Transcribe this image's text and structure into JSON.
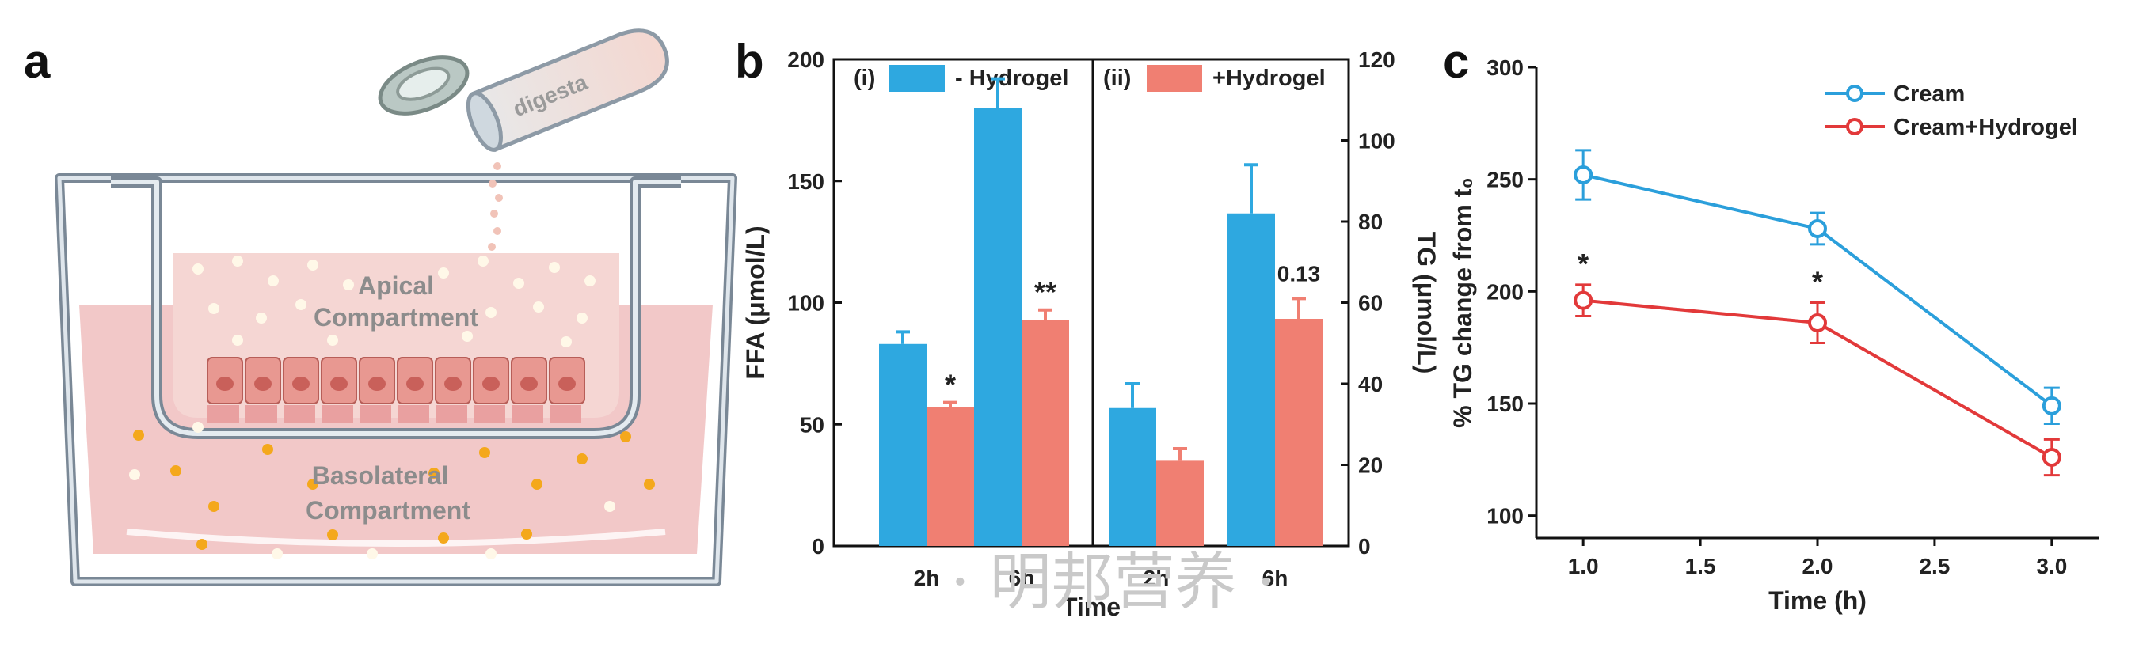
{
  "panels": {
    "a": "a",
    "b": "b",
    "c": "c"
  },
  "diagram": {
    "digesta_label": "digesta",
    "apical_line1": "Apical",
    "apical_line2": "Compartment",
    "basolateral_line1": "Basolateral",
    "basolateral_line2": "Compartment"
  },
  "colors": {
    "no_hydrogel": "#2ea8e0",
    "hydrogel": "#f07f72",
    "cream_line": "#2b9fdb",
    "cream_hydrogel_line": "#e2393a"
  },
  "watermark": "· 明邦营养 ·",
  "chart_data": [
    {
      "type": "bar",
      "panel": "b",
      "xlabel": "Time",
      "legend": [
        {
          "marker": "(i)",
          "name": "- Hydrogel",
          "color": "#2ea8e0"
        },
        {
          "marker": "(ii)",
          "name": "+Hydrogel",
          "color": "#f07f72"
        }
      ],
      "left_axis": {
        "label": "FFA (μmol/L)",
        "ylim": [
          0,
          200
        ],
        "ticks": [
          0,
          50,
          100,
          150,
          200
        ]
      },
      "right_axis": {
        "label": "TG (μmol/L)",
        "ylim": [
          0,
          120
        ],
        "ticks": [
          0,
          20,
          40,
          60,
          80,
          100,
          120
        ]
      },
      "sub_panels": [
        {
          "marker": "(i)",
          "axis": "left",
          "categories": [
            "2h",
            "6h"
          ],
          "series": [
            {
              "name": "- Hydrogel",
              "values": [
                83,
                180
              ],
              "errors": [
                5,
                12
              ]
            },
            {
              "name": "+Hydrogel",
              "values": [
                57,
                93
              ],
              "errors": [
                2,
                4
              ]
            }
          ],
          "annotations": [
            {
              "category": "2h",
              "series": "+Hydrogel",
              "text": "*"
            },
            {
              "category": "6h",
              "series": "+Hydrogel",
              "text": "**"
            }
          ]
        },
        {
          "marker": "(ii)",
          "axis": "right",
          "categories": [
            "2h",
            "6h"
          ],
          "series": [
            {
              "name": "- Hydrogel",
              "values": [
                34,
                82
              ],
              "errors": [
                6,
                12
              ]
            },
            {
              "name": "+Hydrogel",
              "values": [
                21,
                56
              ],
              "errors": [
                3,
                5
              ]
            }
          ],
          "annotations": [
            {
              "category": "6h",
              "series": "+Hydrogel",
              "text": "0.13"
            }
          ]
        }
      ]
    },
    {
      "type": "line",
      "panel": "c",
      "xlabel": "Time (h)",
      "ylabel": "% TG change from t₀",
      "xlim": [
        0.8,
        3.2
      ],
      "ylim": [
        90,
        300
      ],
      "xticks": [
        1.0,
        1.5,
        2.0,
        2.5,
        3.0
      ],
      "xtick_labels": [
        "1.0",
        "1.5",
        "2.0",
        "2.5",
        "3.0"
      ],
      "yticks": [
        100,
        150,
        200,
        250,
        300
      ],
      "x": [
        1.0,
        2.0,
        3.0
      ],
      "series": [
        {
          "name": "Cream",
          "color": "#2b9fdb",
          "values": [
            252,
            228,
            149
          ],
          "errors": [
            11,
            7,
            8
          ]
        },
        {
          "name": "Cream+Hydrogel",
          "color": "#e2393a",
          "values": [
            196,
            186,
            126
          ],
          "errors": [
            7,
            9,
            8
          ]
        }
      ],
      "annotations": [
        {
          "x": 1.0,
          "series": "Cream+Hydrogel",
          "text": "*"
        },
        {
          "x": 2.0,
          "series": "Cream+Hydrogel",
          "text": "*"
        }
      ],
      "legend_position": "top-right"
    }
  ]
}
